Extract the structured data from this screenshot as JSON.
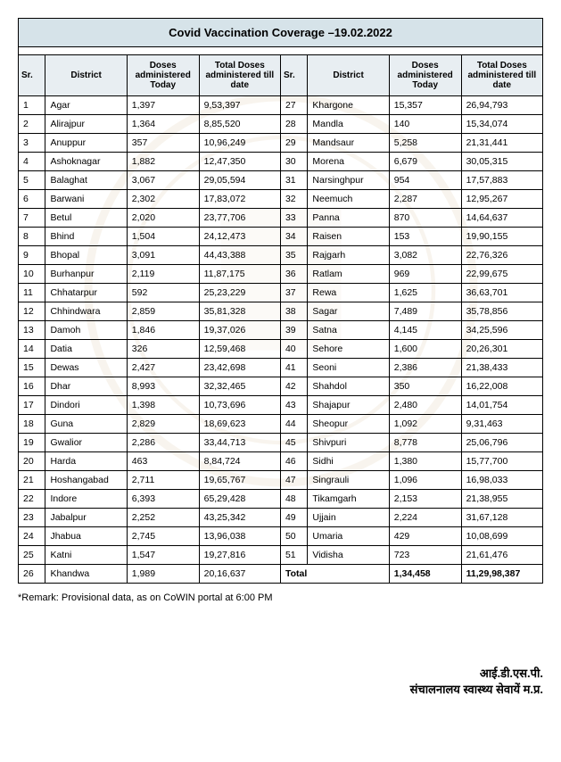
{
  "title": "Covid Vaccination Coverage –19.02.2022",
  "headers": {
    "sr": "Sr.",
    "district": "District",
    "doses_today": "Doses administered Today",
    "total_doses": "Total Doses administered till date"
  },
  "left_rows": [
    {
      "sr": "1",
      "district": "Agar",
      "today": "1,397",
      "total": "9,53,397"
    },
    {
      "sr": "2",
      "district": "Alirajpur",
      "today": "1,364",
      "total": "8,85,520"
    },
    {
      "sr": "3",
      "district": "Anuppur",
      "today": "357",
      "total": "10,96,249"
    },
    {
      "sr": "4",
      "district": "Ashoknagar",
      "today": "1,882",
      "total": "12,47,350"
    },
    {
      "sr": "5",
      "district": "Balaghat",
      "today": "3,067",
      "total": "29,05,594"
    },
    {
      "sr": "6",
      "district": "Barwani",
      "today": "2,302",
      "total": "17,83,072"
    },
    {
      "sr": "7",
      "district": "Betul",
      "today": "2,020",
      "total": "23,77,706"
    },
    {
      "sr": "8",
      "district": "Bhind",
      "today": "1,504",
      "total": "24,12,473"
    },
    {
      "sr": "9",
      "district": "Bhopal",
      "today": "3,091",
      "total": "44,43,388"
    },
    {
      "sr": "10",
      "district": "Burhanpur",
      "today": "2,119",
      "total": "11,87,175"
    },
    {
      "sr": "11",
      "district": "Chhatarpur",
      "today": "592",
      "total": "25,23,229"
    },
    {
      "sr": "12",
      "district": "Chhindwara",
      "today": "2,859",
      "total": "35,81,328"
    },
    {
      "sr": "13",
      "district": "Damoh",
      "today": "1,846",
      "total": "19,37,026"
    },
    {
      "sr": "14",
      "district": "Datia",
      "today": "326",
      "total": "12,59,468"
    },
    {
      "sr": "15",
      "district": "Dewas",
      "today": "2,427",
      "total": "23,42,698"
    },
    {
      "sr": "16",
      "district": "Dhar",
      "today": "8,993",
      "total": "32,32,465"
    },
    {
      "sr": "17",
      "district": "Dindori",
      "today": "1,398",
      "total": "10,73,696"
    },
    {
      "sr": "18",
      "district": "Guna",
      "today": "2,829",
      "total": "18,69,623"
    },
    {
      "sr": "19",
      "district": "Gwalior",
      "today": "2,286",
      "total": "33,44,713"
    },
    {
      "sr": "20",
      "district": "Harda",
      "today": "463",
      "total": "8,84,724"
    },
    {
      "sr": "21",
      "district": "Hoshangabad",
      "today": "2,711",
      "total": "19,65,767"
    },
    {
      "sr": "22",
      "district": "Indore",
      "today": "6,393",
      "total": "65,29,428"
    },
    {
      "sr": "23",
      "district": "Jabalpur",
      "today": "2,252",
      "total": "43,25,342"
    },
    {
      "sr": "24",
      "district": "Jhabua",
      "today": "2,745",
      "total": "13,96,038"
    },
    {
      "sr": "25",
      "district": "Katni",
      "today": "1,547",
      "total": "19,27,816"
    },
    {
      "sr": "26",
      "district": "Khandwa",
      "today": "1,989",
      "total": "20,16,637"
    }
  ],
  "right_rows": [
    {
      "sr": "27",
      "district": "Khargone",
      "today": "15,357",
      "total": "26,94,793"
    },
    {
      "sr": "28",
      "district": "Mandla",
      "today": "140",
      "total": "15,34,074"
    },
    {
      "sr": "29",
      "district": "Mandsaur",
      "today": "5,258",
      "total": "21,31,441"
    },
    {
      "sr": "30",
      "district": "Morena",
      "today": "6,679",
      "total": "30,05,315"
    },
    {
      "sr": "31",
      "district": "Narsinghpur",
      "today": "954",
      "total": "17,57,883"
    },
    {
      "sr": "32",
      "district": "Neemuch",
      "today": "2,287",
      "total": "12,95,267"
    },
    {
      "sr": "33",
      "district": "Panna",
      "today": "870",
      "total": "14,64,637"
    },
    {
      "sr": "34",
      "district": "Raisen",
      "today": "153",
      "total": "19,90,155"
    },
    {
      "sr": "35",
      "district": "Rajgarh",
      "today": "3,082",
      "total": "22,76,326"
    },
    {
      "sr": "36",
      "district": "Ratlam",
      "today": "969",
      "total": "22,99,675"
    },
    {
      "sr": "37",
      "district": "Rewa",
      "today": "1,625",
      "total": "36,63,701"
    },
    {
      "sr": "38",
      "district": "Sagar",
      "today": "7,489",
      "total": "35,78,856"
    },
    {
      "sr": "39",
      "district": "Satna",
      "today": "4,145",
      "total": "34,25,596"
    },
    {
      "sr": "40",
      "district": "Sehore",
      "today": "1,600",
      "total": "20,26,301"
    },
    {
      "sr": "41",
      "district": "Seoni",
      "today": "2,386",
      "total": "21,38,433"
    },
    {
      "sr": "42",
      "district": "Shahdol",
      "today": "350",
      "total": "16,22,008"
    },
    {
      "sr": "43",
      "district": "Shajapur",
      "today": "2,480",
      "total": "14,01,754"
    },
    {
      "sr": "44",
      "district": "Sheopur",
      "today": "1,092",
      "total": "9,31,463"
    },
    {
      "sr": "45",
      "district": "Shivpuri",
      "today": "8,778",
      "total": "25,06,796"
    },
    {
      "sr": "46",
      "district": "Sidhi",
      "today": "1,380",
      "total": "15,77,700"
    },
    {
      "sr": "47",
      "district": "Singrauli",
      "today": "1,096",
      "total": "16,98,033"
    },
    {
      "sr": "48",
      "district": "Tikamgarh",
      "today": "2,153",
      "total": "21,38,955"
    },
    {
      "sr": "49",
      "district": "Ujjain",
      "today": "2,224",
      "total": "31,67,128"
    },
    {
      "sr": "50",
      "district": "Umaria",
      "today": "429",
      "total": "10,08,699"
    },
    {
      "sr": "51",
      "district": "Vidisha",
      "today": "723",
      "total": "21,61,476"
    }
  ],
  "total_row": {
    "label": "Total",
    "today": "1,34,458",
    "total": "11,29,98,387"
  },
  "remark": "*Remark: Provisional data, as on CoWIN portal at 6:00 PM",
  "footer_line1": "आई.डी.एस.पी.",
  "footer_line2": "संचालनालय स्वास्थ्य सेवायें म.प्र.",
  "style": {
    "header_bg": "#e8eef2",
    "title_bg": "#d6e3e9",
    "border_color": "#000000",
    "body_font_size": 10.5,
    "title_font_size": 13
  }
}
